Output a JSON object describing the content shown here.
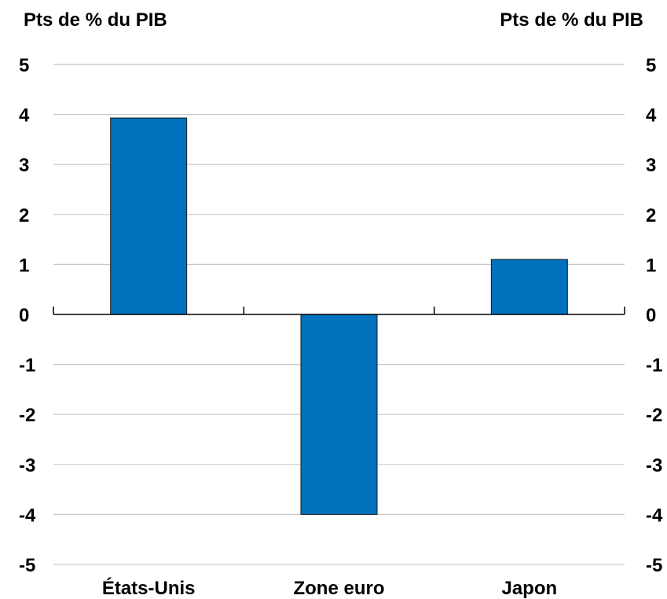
{
  "chart_data": {
    "type": "bar",
    "y_axis_label_left": "Pts de % du PIB",
    "y_axis_label_right": "Pts de % du PIB",
    "categories": [
      "États-Unis",
      "Zone euro",
      "Japon"
    ],
    "values": [
      3.93,
      -4.0,
      1.1
    ],
    "ylim": [
      -5,
      5
    ],
    "yticks": [
      "5",
      "4",
      "3",
      "2",
      "1",
      "0",
      "-1",
      "-2",
      "-3",
      "-4",
      "-5"
    ],
    "grid": true,
    "legend": "none",
    "colors": {
      "bar": "#0071BC",
      "bar_edge": "#1a1a1a",
      "grid": "#C8C8C8",
      "zero_axis": "#000000"
    }
  }
}
